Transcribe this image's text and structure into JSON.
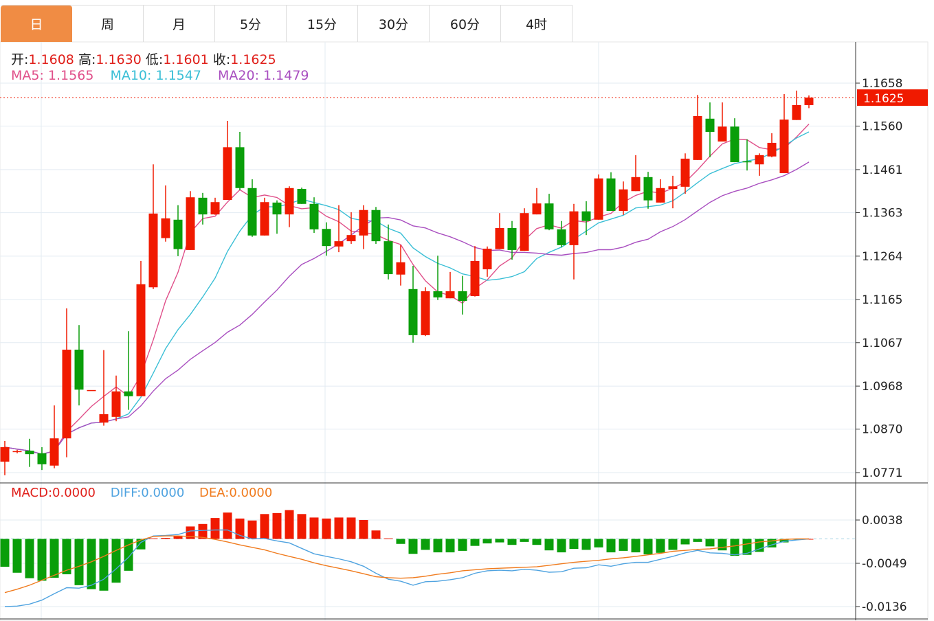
{
  "tabs": [
    {
      "label": "日",
      "active": true
    },
    {
      "label": "周",
      "active": false
    },
    {
      "label": "月",
      "active": false
    },
    {
      "label": "5分",
      "active": false
    },
    {
      "label": "15分",
      "active": false
    },
    {
      "label": "30分",
      "active": false
    },
    {
      "label": "60分",
      "active": false
    },
    {
      "label": "4时",
      "active": false
    }
  ],
  "ohlc_legend": {
    "open_label": "开:",
    "open": "1.1608",
    "high_label": "高:",
    "high": "1.1630",
    "low_label": "低:",
    "low": "1.1601",
    "close_label": "收:",
    "close": "1.1625"
  },
  "ma_legend": {
    "ma5": "MA5:  1.1565",
    "ma10": "MA10:  1.1547",
    "ma20": "MA20:  1.1479"
  },
  "macd_legend": {
    "macd_label": "MACD:",
    "macd": "0.0000",
    "diff_label": "DIFF:",
    "diff": "0.0000",
    "dea_label": "DEA:",
    "dea": "0.0000"
  },
  "colors": {
    "up": "#f01a00",
    "down": "#0a9e0a",
    "ma5": "#e0508a",
    "ma10": "#3bbfd6",
    "ma20": "#a94fc0",
    "diff": "#4fa3e0",
    "dea": "#f07b1e",
    "accent": "#f08c44"
  },
  "chart_data": [
    {
      "type": "candlestick",
      "title": "",
      "ylim": [
        1.0771,
        1.1658
      ],
      "yticks": [
        "1.1658",
        "1.1560",
        "1.1461",
        "1.1363",
        "1.1264",
        "1.1165",
        "1.1067",
        "1.0968",
        "1.0870",
        "1.0771"
      ],
      "last_price_label": "1.1625",
      "last_price": 1.1625,
      "ma_periods": [
        5,
        10,
        20
      ],
      "ohlc": [
        [
          1.0796,
          1.0843,
          1.0765,
          1.0829
        ],
        [
          1.082,
          1.0823,
          1.0815,
          1.082
        ],
        [
          1.0821,
          1.0848,
          1.0784,
          1.0813
        ],
        [
          1.0815,
          1.0829,
          1.0777,
          1.079
        ],
        [
          1.0787,
          1.0924,
          1.0781,
          1.0849
        ],
        [
          1.0849,
          1.1145,
          1.0806,
          1.1051
        ],
        [
          1.1051,
          1.1107,
          1.0924,
          1.096
        ],
        [
          1.0957,
          1.0957,
          1.0957,
          1.0959
        ],
        [
          1.0885,
          1.105,
          1.0878,
          1.0904
        ],
        [
          1.0898,
          1.0992,
          1.0888,
          1.0956
        ],
        [
          1.0956,
          1.1093,
          1.0914,
          1.0945
        ],
        [
          1.0945,
          1.1253,
          1.0945,
          1.12
        ],
        [
          1.1193,
          1.1473,
          1.1189,
          1.1361
        ],
        [
          1.1305,
          1.1425,
          1.1297,
          1.135
        ],
        [
          1.1347,
          1.138,
          1.1264,
          1.128
        ],
        [
          1.1278,
          1.1412,
          1.1278,
          1.1398
        ],
        [
          1.1397,
          1.1408,
          1.1336,
          1.1359
        ],
        [
          1.1359,
          1.1397,
          1.1358,
          1.1387
        ],
        [
          1.1392,
          1.1572,
          1.1392,
          1.1512
        ],
        [
          1.1512,
          1.1547,
          1.1414,
          1.1419
        ],
        [
          1.1419,
          1.1439,
          1.1308,
          1.1311
        ],
        [
          1.1311,
          1.1397,
          1.1311,
          1.1387
        ],
        [
          1.1386,
          1.1391,
          1.1315,
          1.1359
        ],
        [
          1.1359,
          1.1423,
          1.133,
          1.1419
        ],
        [
          1.1417,
          1.142,
          1.1383,
          1.1383
        ],
        [
          1.1383,
          1.1398,
          1.1317,
          1.1325
        ],
        [
          1.1326,
          1.1341,
          1.1265,
          1.1287
        ],
        [
          1.1286,
          1.138,
          1.1273,
          1.1298
        ],
        [
          1.1298,
          1.1364,
          1.1292,
          1.1312
        ],
        [
          1.1311,
          1.138,
          1.128,
          1.1369
        ],
        [
          1.1369,
          1.1376,
          1.1292,
          1.1298
        ],
        [
          1.1298,
          1.1336,
          1.1211,
          1.1223
        ],
        [
          1.1222,
          1.1289,
          1.1197,
          1.125
        ],
        [
          1.1189,
          1.1242,
          1.1067,
          1.1084
        ],
        [
          1.1084,
          1.1193,
          1.1082,
          1.1184
        ],
        [
          1.1184,
          1.1265,
          1.1164,
          1.117
        ],
        [
          1.1168,
          1.1228,
          1.1168,
          1.1184
        ],
        [
          1.1184,
          1.1219,
          1.1131,
          1.1162
        ],
        [
          1.1173,
          1.1287,
          1.1172,
          1.1253
        ],
        [
          1.1234,
          1.1286,
          1.1217,
          1.1281
        ],
        [
          1.128,
          1.1362,
          1.128,
          1.1328
        ],
        [
          1.1328,
          1.1344,
          1.1256,
          1.1278
        ],
        [
          1.1276,
          1.1373,
          1.1276,
          1.1362
        ],
        [
          1.1359,
          1.1419,
          1.1359,
          1.1384
        ],
        [
          1.1384,
          1.1406,
          1.1323,
          1.1325
        ],
        [
          1.1325,
          1.1344,
          1.1284,
          1.1289
        ],
        [
          1.1289,
          1.1383,
          1.1211,
          1.1366
        ],
        [
          1.1366,
          1.1389,
          1.1312,
          1.1344
        ],
        [
          1.1347,
          1.145,
          1.1347,
          1.1441
        ],
        [
          1.1441,
          1.1455,
          1.1367,
          1.1367
        ],
        [
          1.1367,
          1.1434,
          1.1358,
          1.1416
        ],
        [
          1.1412,
          1.1494,
          1.1412,
          1.1444
        ],
        [
          1.1444,
          1.1456,
          1.1372,
          1.1391
        ],
        [
          1.1386,
          1.1439,
          1.1386,
          1.1419
        ],
        [
          1.1417,
          1.1447,
          1.1373,
          1.1423
        ],
        [
          1.1422,
          1.1498,
          1.1406,
          1.1486
        ],
        [
          1.1483,
          1.1631,
          1.1483,
          1.1583
        ],
        [
          1.1577,
          1.1614,
          1.1489,
          1.1547
        ],
        [
          1.1525,
          1.1614,
          1.1525,
          1.1559
        ],
        [
          1.1559,
          1.1578,
          1.1478,
          1.1478
        ],
        [
          1.148,
          1.153,
          1.1459,
          1.1478
        ],
        [
          1.1473,
          1.1498,
          1.1447,
          1.1494
        ],
        [
          1.1491,
          1.1544,
          1.1489,
          1.1522
        ],
        [
          1.1453,
          1.1633,
          1.1453,
          1.1575
        ],
        [
          1.1574,
          1.1641,
          1.1574,
          1.1608
        ],
        [
          1.1608,
          1.163,
          1.1601,
          1.1625
        ]
      ]
    },
    {
      "type": "bar+line",
      "title": "MACD",
      "ylim": [
        -0.0136,
        0.0038
      ],
      "yticks": [
        "0.0038",
        "-0.0049",
        "-0.0136"
      ],
      "macd": [
        -0.0056,
        -0.0068,
        -0.0079,
        -0.0084,
        -0.0078,
        -0.0071,
        -0.0093,
        -0.0101,
        -0.0104,
        -0.0088,
        -0.0064,
        -0.0021,
        0.0001,
        0.0002,
        0.0006,
        0.0025,
        0.003,
        0.0042,
        0.0053,
        0.0041,
        0.0037,
        0.005,
        0.0052,
        0.0058,
        0.005,
        0.0043,
        0.0041,
        0.0043,
        0.0043,
        0.0038,
        0.0017,
        0.0001,
        -0.001,
        -0.003,
        -0.0022,
        -0.0027,
        -0.0027,
        -0.0024,
        -0.0014,
        -0.0009,
        -0.0007,
        -0.0012,
        -0.0006,
        -0.0012,
        -0.0023,
        -0.0027,
        -0.002,
        -0.0022,
        -0.0017,
        -0.0027,
        -0.0024,
        -0.0027,
        -0.0031,
        -0.0028,
        -0.0022,
        -0.0011,
        -0.0006,
        -0.0015,
        -0.0023,
        -0.0034,
        -0.0032,
        -0.0026,
        -0.0017,
        -0.0007,
        -0.0001,
        0.0
      ],
      "diff": [
        -0.0136,
        -0.0135,
        -0.0131,
        -0.0123,
        -0.011,
        -0.0098,
        -0.0099,
        -0.0093,
        -0.0081,
        -0.006,
        -0.0037,
        -0.0007,
        0.0006,
        0.0007,
        0.0009,
        0.0016,
        0.0017,
        0.0018,
        0.0018,
        0.0007,
        0.0,
        0.0001,
        -0.0004,
        -0.0008,
        -0.0019,
        -0.003,
        -0.0035,
        -0.004,
        -0.0046,
        -0.0055,
        -0.0069,
        -0.0081,
        -0.0085,
        -0.0093,
        -0.0086,
        -0.0085,
        -0.0082,
        -0.0078,
        -0.0069,
        -0.0064,
        -0.0063,
        -0.0064,
        -0.0061,
        -0.0063,
        -0.0067,
        -0.0066,
        -0.0059,
        -0.0058,
        -0.0052,
        -0.0055,
        -0.005,
        -0.0047,
        -0.0047,
        -0.0041,
        -0.0035,
        -0.0028,
        -0.0023,
        -0.0028,
        -0.0029,
        -0.0032,
        -0.0029,
        -0.002,
        -0.0012,
        -0.0005,
        -0.0002,
        0.0
      ],
      "dea": [
        -0.0108,
        -0.0101,
        -0.0093,
        -0.0083,
        -0.0073,
        -0.0063,
        -0.0055,
        -0.0046,
        -0.0035,
        -0.0023,
        -0.0012,
        -0.0002,
        0.0005,
        0.0006,
        0.0006,
        0.0005,
        0.0003,
        -0.0001,
        -0.0006,
        -0.0012,
        -0.0017,
        -0.0022,
        -0.0029,
        -0.0035,
        -0.0041,
        -0.0048,
        -0.0054,
        -0.0059,
        -0.0064,
        -0.007,
        -0.0076,
        -0.0078,
        -0.0079,
        -0.0078,
        -0.0075,
        -0.0071,
        -0.0068,
        -0.0064,
        -0.0062,
        -0.006,
        -0.0059,
        -0.0058,
        -0.0057,
        -0.0056,
        -0.0053,
        -0.005,
        -0.0047,
        -0.0045,
        -0.0043,
        -0.004,
        -0.0038,
        -0.0035,
        -0.0032,
        -0.0029,
        -0.0025,
        -0.0023,
        -0.0021,
        -0.002,
        -0.0017,
        -0.0014,
        -0.001,
        -0.0006,
        -0.0004,
        -0.0001,
        0.0,
        0.0
      ]
    }
  ]
}
